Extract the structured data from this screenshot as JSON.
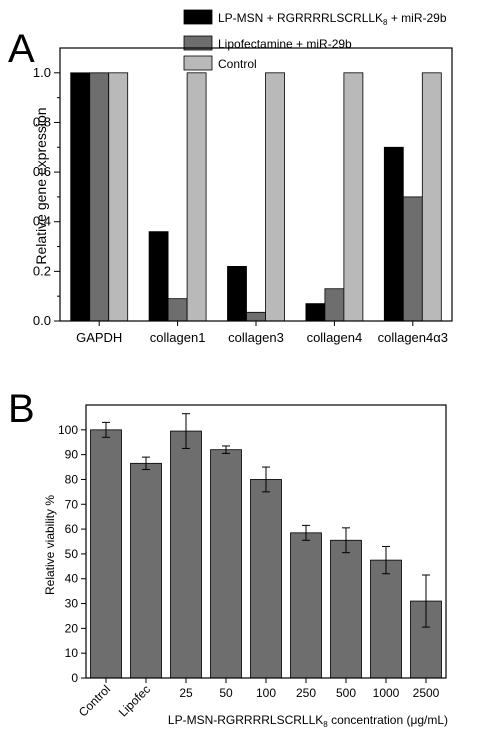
{
  "chart_data": [
    {
      "panel_label": "A",
      "type": "bar",
      "categories": [
        "GAPDH",
        "collagen1",
        "collagen3",
        "collagen4",
        "collagen4α3"
      ],
      "series": [
        {
          "name": "LP-MSN + RGRRRRLSCRLLK",
          "name_sub": "8",
          "name_tail": " + miR-29b",
          "color": "#000000",
          "values": [
            1.0,
            0.36,
            0.22,
            0.07,
            0.7
          ]
        },
        {
          "name": "Lipofectamine + miR-29b",
          "color": "#6e6e6e",
          "values": [
            1.0,
            0.09,
            0.035,
            0.13,
            0.5
          ]
        },
        {
          "name": "Control",
          "color": "#b9b9b9",
          "values": [
            1.0,
            1.0,
            1.0,
            1.0,
            1.0
          ]
        }
      ],
      "ylabel": "Relative gene expression",
      "xlabel": "",
      "ylim": [
        0,
        1.1
      ],
      "yticks": [
        0.0,
        0.2,
        0.4,
        0.6,
        0.8,
        1.0
      ],
      "ytick_labels": [
        "0.0",
        "0.2",
        "0.4",
        "0.6",
        "0.8",
        "1.0"
      ],
      "legend_position": "top-right"
    },
    {
      "panel_label": "B",
      "type": "bar",
      "categories": [
        "Control",
        "Lipofec",
        "25",
        "50",
        "100",
        "250",
        "500",
        "1000",
        "2500"
      ],
      "series": [
        {
          "color": "#6e6e6e",
          "values": [
            100,
            86.5,
            99.5,
            92,
            80,
            58.5,
            55.5,
            47.5,
            31
          ],
          "errors": [
            3,
            2.5,
            7,
            1.5,
            5,
            3,
            5,
            5.5,
            10.5
          ]
        }
      ],
      "ylabel": "Relative viability %",
      "xlabel": "LP-MSN-RGRRRRLSCRLLK",
      "xlabel_sub": "8",
      "xlabel_tail": " concentration (μg/mL)",
      "ylim": [
        0,
        110
      ],
      "yticks": [
        0,
        10,
        20,
        30,
        40,
        50,
        60,
        70,
        80,
        90,
        100
      ],
      "ytick_labels": [
        "0",
        "10",
        "20",
        "30",
        "40",
        "50",
        "60",
        "70",
        "80",
        "90",
        "100"
      ],
      "rotated_tick_count": 2
    }
  ]
}
